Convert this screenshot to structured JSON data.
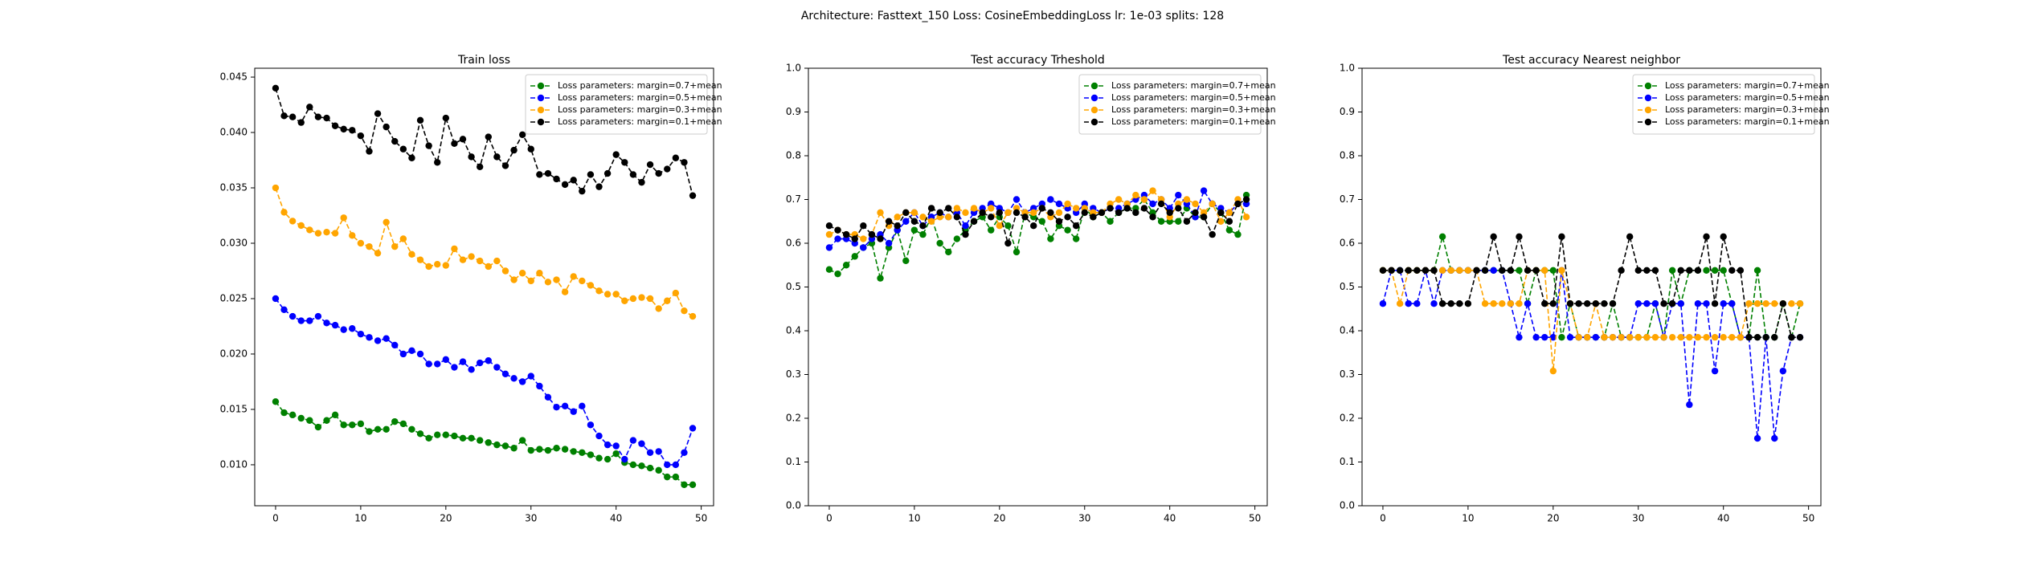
{
  "title": "Architecture: Fasttext_150 Loss: CosineEmbeddingLoss lr: 1e-03 splits: 128",
  "chart_data": [
    {
      "type": "line",
      "title": "Train loss",
      "legend": "upper right",
      "x": [
        0,
        1,
        2,
        3,
        4,
        5,
        6,
        7,
        8,
        9,
        10,
        11,
        12,
        13,
        14,
        15,
        16,
        17,
        18,
        19,
        20,
        21,
        22,
        23,
        24,
        25,
        26,
        27,
        28,
        29,
        30,
        31,
        32,
        33,
        34,
        35,
        36,
        37,
        38,
        39,
        40,
        41,
        42,
        43,
        44,
        45,
        46,
        47,
        48,
        49
      ],
      "xlim": [
        -2.45,
        51.45
      ],
      "xticks": [
        0,
        10,
        20,
        30,
        40,
        50
      ],
      "ylim": [
        0.0063,
        0.0458
      ],
      "yticks": [
        {
          "value": 0.01,
          "label": "0.010"
        },
        0.015,
        {
          "value": 0.02,
          "label": "0.020"
        },
        0.025,
        {
          "value": 0.03,
          "label": "0.030"
        },
        0.035,
        {
          "value": 0.04,
          "label": "0.040"
        },
        0.045
      ],
      "series": [
        {
          "name": "Loss parameters: margin=0.7+mean",
          "color": "green",
          "values": [
            0.0157,
            0.0147,
            0.0145,
            0.0142,
            0.014,
            0.0134,
            0.014,
            0.0145,
            0.0136,
            0.0136,
            0.0137,
            0.013,
            0.0132,
            0.0132,
            0.0139,
            0.0137,
            0.0132,
            0.0128,
            0.0124,
            0.0127,
            0.0127,
            0.0126,
            0.0124,
            0.0124,
            0.0122,
            0.012,
            0.0118,
            0.0117,
            0.0115,
            0.0122,
            0.0113,
            0.0114,
            0.0113,
            0.0115,
            0.0114,
            0.0112,
            0.0111,
            0.0109,
            0.0106,
            0.0105,
            0.011,
            0.0102,
            0.01,
            0.0099,
            0.0097,
            0.0095,
            0.0089,
            0.0089,
            0.0082,
            0.0082
          ]
        },
        {
          "name": "Loss parameters: margin=0.5+mean",
          "color": "blue",
          "values": [
            0.025,
            0.024,
            0.0234,
            0.023,
            0.023,
            0.0234,
            0.0228,
            0.0226,
            0.0222,
            0.0223,
            0.0218,
            0.0215,
            0.0212,
            0.0214,
            0.0208,
            0.02,
            0.0203,
            0.02,
            0.0191,
            0.0191,
            0.0195,
            0.0188,
            0.0193,
            0.0186,
            0.0192,
            0.0194,
            0.0188,
            0.0182,
            0.0178,
            0.0175,
            0.018,
            0.0171,
            0.0161,
            0.0152,
            0.0153,
            0.0148,
            0.0153,
            0.0136,
            0.0126,
            0.0118,
            0.0117,
            0.0105,
            0.0122,
            0.0119,
            0.0111,
            0.0112,
            0.01,
            0.01,
            0.0111,
            0.0133
          ]
        },
        {
          "name": "Loss parameters: margin=0.3+mean",
          "color": "orange",
          "values": [
            0.035,
            0.0328,
            0.032,
            0.0316,
            0.0312,
            0.0309,
            0.031,
            0.0309,
            0.0323,
            0.0307,
            0.03,
            0.0297,
            0.0291,
            0.0319,
            0.0297,
            0.0304,
            0.029,
            0.0285,
            0.0279,
            0.0281,
            0.028,
            0.0295,
            0.0285,
            0.0288,
            0.0284,
            0.0279,
            0.0284,
            0.0275,
            0.0267,
            0.0273,
            0.0266,
            0.0273,
            0.0265,
            0.0267,
            0.0256,
            0.027,
            0.0266,
            0.0262,
            0.0257,
            0.0254,
            0.0254,
            0.0248,
            0.025,
            0.0251,
            0.025,
            0.0241,
            0.0248,
            0.0255,
            0.0239,
            0.0234
          ]
        },
        {
          "name": "Loss parameters: margin=0.1+mean",
          "color": "black",
          "values": [
            0.044,
            0.0415,
            0.0414,
            0.0409,
            0.0423,
            0.0414,
            0.0413,
            0.0406,
            0.0403,
            0.0402,
            0.0397,
            0.0383,
            0.0417,
            0.0405,
            0.0392,
            0.0385,
            0.0377,
            0.0411,
            0.0388,
            0.0373,
            0.0413,
            0.039,
            0.0394,
            0.0378,
            0.0369,
            0.0396,
            0.0378,
            0.037,
            0.0384,
            0.0398,
            0.0385,
            0.0362,
            0.0363,
            0.0358,
            0.0353,
            0.0357,
            0.0347,
            0.0362,
            0.0351,
            0.0363,
            0.038,
            0.0373,
            0.0362,
            0.0355,
            0.0371,
            0.0363,
            0.0367,
            0.0377,
            0.0373,
            0.0343
          ]
        }
      ]
    },
    {
      "type": "line",
      "title": "Test accuracy Trheshold",
      "legend": "upper right",
      "x": [
        0,
        1,
        2,
        3,
        4,
        5,
        6,
        7,
        8,
        9,
        10,
        11,
        12,
        13,
        14,
        15,
        16,
        17,
        18,
        19,
        20,
        21,
        22,
        23,
        24,
        25,
        26,
        27,
        28,
        29,
        30,
        31,
        32,
        33,
        34,
        35,
        36,
        37,
        38,
        39,
        40,
        41,
        42,
        43,
        44,
        45,
        46,
        47,
        48,
        49
      ],
      "xlim": [
        -2.45,
        51.45
      ],
      "xticks": [
        0,
        10,
        20,
        30,
        40,
        50
      ],
      "ylim": [
        0,
        1
      ],
      "yticks": [
        {
          "value": 0,
          "label": "0.0"
        },
        0.1,
        0.2,
        0.3,
        0.4,
        0.5,
        0.6,
        0.7,
        0.8,
        0.9,
        {
          "value": 1,
          "label": "1.0"
        }
      ],
      "series": [
        {
          "name": "Loss parameters: margin=0.7+mean",
          "color": "green",
          "values": [
            0.54,
            0.53,
            0.55,
            0.57,
            0.59,
            0.6,
            0.52,
            0.59,
            0.63,
            0.56,
            0.63,
            0.62,
            0.66,
            0.6,
            0.58,
            0.61,
            0.63,
            0.65,
            0.66,
            0.63,
            0.66,
            0.64,
            0.58,
            0.67,
            0.66,
            0.65,
            0.61,
            0.64,
            0.63,
            0.61,
            0.68,
            0.66,
            0.67,
            0.65,
            0.67,
            0.68,
            0.68,
            0.7,
            0.67,
            0.65,
            0.65,
            0.65,
            0.68,
            0.66,
            0.66,
            0.69,
            0.67,
            0.63,
            0.62,
            0.71
          ]
        },
        {
          "name": "Loss parameters: margin=0.5+mean",
          "color": "blue",
          "values": [
            0.59,
            0.61,
            0.61,
            0.6,
            0.59,
            0.61,
            0.62,
            0.6,
            0.63,
            0.65,
            0.67,
            0.64,
            0.66,
            0.67,
            0.66,
            0.67,
            0.64,
            0.67,
            0.68,
            0.69,
            0.68,
            0.67,
            0.7,
            0.67,
            0.68,
            0.69,
            0.7,
            0.69,
            0.68,
            0.67,
            0.69,
            0.68,
            0.67,
            0.68,
            0.68,
            0.69,
            0.7,
            0.71,
            0.69,
            0.7,
            0.68,
            0.71,
            0.69,
            0.66,
            0.72,
            0.69,
            0.68,
            0.67,
            0.69,
            0.69
          ]
        },
        {
          "name": "Loss parameters: margin=0.3+mean",
          "color": "orange",
          "values": [
            0.62,
            0.63,
            0.62,
            0.62,
            0.61,
            0.62,
            0.67,
            0.64,
            0.66,
            0.67,
            0.67,
            0.66,
            0.65,
            0.66,
            0.66,
            0.68,
            0.67,
            0.68,
            0.67,
            0.68,
            0.64,
            0.67,
            0.68,
            0.67,
            0.67,
            0.68,
            0.66,
            0.67,
            0.69,
            0.68,
            0.68,
            0.67,
            0.67,
            0.69,
            0.7,
            0.69,
            0.71,
            0.7,
            0.72,
            0.7,
            0.66,
            0.69,
            0.7,
            0.69,
            0.67,
            0.69,
            0.65,
            0.67,
            0.7,
            0.66
          ]
        },
        {
          "name": "Loss parameters: margin=0.1+mean",
          "color": "black",
          "values": [
            0.64,
            0.63,
            0.62,
            0.61,
            0.64,
            0.62,
            0.61,
            0.65,
            0.64,
            0.67,
            0.65,
            0.64,
            0.68,
            0.67,
            0.68,
            0.66,
            0.62,
            0.65,
            0.67,
            0.66,
            0.67,
            0.6,
            0.67,
            0.66,
            0.64,
            0.68,
            0.67,
            0.65,
            0.66,
            0.64,
            0.67,
            0.66,
            0.67,
            0.68,
            0.67,
            0.68,
            0.67,
            0.68,
            0.66,
            0.69,
            0.67,
            0.68,
            0.65,
            0.67,
            0.66,
            0.62,
            0.67,
            0.65,
            0.69,
            0.7
          ]
        }
      ]
    },
    {
      "type": "line",
      "title": "Test accuracy Nearest neighbor",
      "legend": "upper right",
      "x": [
        0,
        1,
        2,
        3,
        4,
        5,
        6,
        7,
        8,
        9,
        10,
        11,
        12,
        13,
        14,
        15,
        16,
        17,
        18,
        19,
        20,
        21,
        22,
        23,
        24,
        25,
        26,
        27,
        28,
        29,
        30,
        31,
        32,
        33,
        34,
        35,
        36,
        37,
        38,
        39,
        40,
        41,
        42,
        43,
        44,
        45,
        46,
        47,
        48,
        49
      ],
      "xlim": [
        -2.45,
        51.45
      ],
      "xticks": [
        0,
        10,
        20,
        30,
        40,
        50
      ],
      "ylim": [
        0,
        1
      ],
      "yticks": [
        {
          "value": 0,
          "label": "0.0"
        },
        0.1,
        0.2,
        0.3,
        0.4,
        0.5,
        0.6,
        0.7,
        0.8,
        0.9,
        {
          "value": 1,
          "label": "1.0"
        }
      ],
      "series": [
        {
          "name": "Loss parameters: margin=0.7+mean",
          "color": "green",
          "values": [
            0.538,
            0.538,
            0.538,
            0.538,
            0.538,
            0.538,
            0.538,
            0.615,
            0.538,
            0.538,
            0.538,
            0.538,
            0.538,
            0.538,
            0.538,
            0.538,
            0.538,
            0.462,
            0.538,
            0.538,
            0.538,
            0.385,
            0.462,
            0.385,
            0.385,
            0.385,
            0.385,
            0.462,
            0.385,
            0.385,
            0.385,
            0.385,
            0.462,
            0.385,
            0.538,
            0.462,
            0.538,
            0.538,
            0.538,
            0.538,
            0.538,
            0.462,
            0.385,
            0.385,
            0.538,
            0.385,
            0.385,
            0.462,
            0.385,
            0.462
          ]
        },
        {
          "name": "Loss parameters: margin=0.5+mean",
          "color": "blue",
          "values": [
            0.462,
            0.538,
            0.538,
            0.462,
            0.462,
            0.538,
            0.462,
            0.538,
            0.538,
            0.538,
            0.538,
            0.538,
            0.538,
            0.538,
            0.538,
            0.462,
            0.385,
            0.462,
            0.385,
            0.385,
            0.385,
            0.538,
            0.385,
            0.385,
            0.385,
            0.385,
            0.385,
            0.385,
            0.385,
            0.385,
            0.462,
            0.462,
            0.462,
            0.385,
            0.462,
            0.462,
            0.231,
            0.462,
            0.462,
            0.308,
            0.462,
            0.462,
            0.385,
            0.385,
            0.154,
            0.385,
            0.154,
            0.308,
            0.385,
            0.385
          ]
        },
        {
          "name": "Loss parameters: margin=0.3+mean",
          "color": "orange",
          "values": [
            0.538,
            0.538,
            0.462,
            0.538,
            0.538,
            0.538,
            0.538,
            0.538,
            0.538,
            0.538,
            0.538,
            0.538,
            0.462,
            0.462,
            0.462,
            0.462,
            0.462,
            0.538,
            0.538,
            0.538,
            0.308,
            0.538,
            0.462,
            0.385,
            0.385,
            0.462,
            0.385,
            0.385,
            0.385,
            0.385,
            0.385,
            0.385,
            0.385,
            0.385,
            0.385,
            0.385,
            0.385,
            0.385,
            0.385,
            0.385,
            0.385,
            0.385,
            0.385,
            0.462,
            0.462,
            0.462,
            0.462,
            0.462,
            0.462,
            0.462
          ]
        },
        {
          "name": "Loss parameters: margin=0.1+mean",
          "color": "black",
          "values": [
            0.538,
            0.538,
            0.538,
            0.538,
            0.538,
            0.538,
            0.538,
            0.462,
            0.462,
            0.462,
            0.462,
            0.538,
            0.538,
            0.615,
            0.538,
            0.538,
            0.615,
            0.538,
            0.538,
            0.462,
            0.462,
            0.615,
            0.462,
            0.462,
            0.462,
            0.462,
            0.462,
            0.462,
            0.538,
            0.615,
            0.538,
            0.538,
            0.538,
            0.462,
            0.462,
            0.538,
            0.538,
            0.538,
            0.615,
            0.462,
            0.615,
            0.538,
            0.538,
            0.385,
            0.385,
            0.385,
            0.385,
            0.462,
            0.385,
            0.385
          ]
        }
      ]
    }
  ]
}
